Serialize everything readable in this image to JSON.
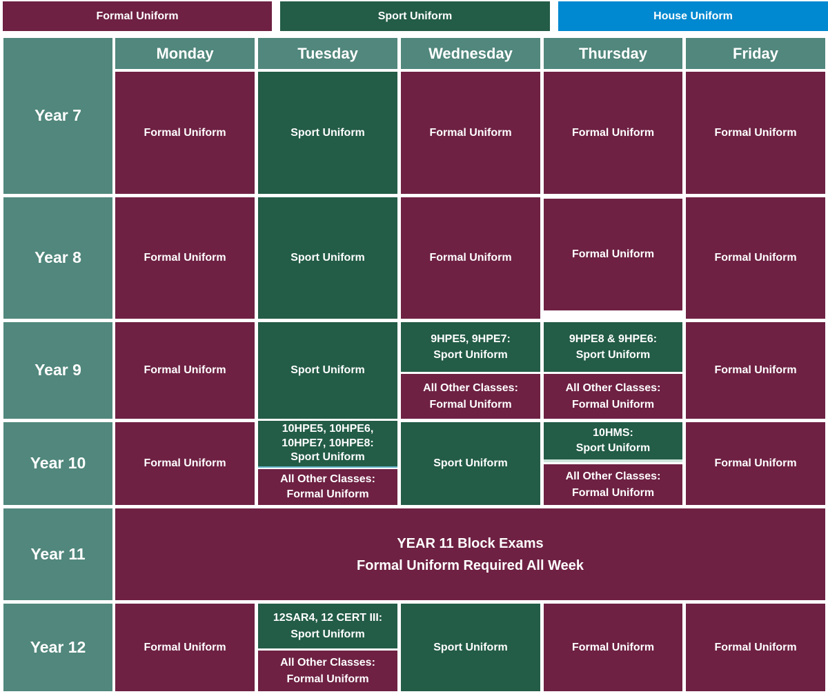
{
  "legend": {
    "formal": "Formal Uniform",
    "sport": "Sport Uniform",
    "house": "House Uniform"
  },
  "colors": {
    "formal": "#6e2143",
    "sport": "#235c47",
    "house": "#0088d0",
    "header": "#51877c"
  },
  "days": [
    "Monday",
    "Tuesday",
    "Wednesday",
    "Thursday",
    "Friday"
  ],
  "years": [
    "Year 7",
    "Year 8",
    "Year 9",
    "Year 10",
    "Year 11",
    "Year 12"
  ],
  "cells": {
    "y7": {
      "mon": "Formal Uniform",
      "tue": "Sport Uniform",
      "wed": "Formal Uniform",
      "thu": "Formal Uniform",
      "fri": "Formal Uniform"
    },
    "y8": {
      "mon": "Formal Uniform",
      "tue": "Sport Uniform",
      "wed": "Formal Uniform",
      "thu": "Formal Uniform",
      "fri": "Formal Uniform"
    },
    "y9": {
      "mon": "Formal Uniform",
      "tue": "Sport Uniform",
      "wed_top": [
        "9HPE5, 9HPE7:",
        "Sport Uniform"
      ],
      "wed_bottom": [
        "All Other Classes:",
        "Formal Uniform"
      ],
      "thu_top": [
        "9HPE8 & 9HPE6:",
        "Sport Uniform"
      ],
      "thu_bottom": [
        "All Other Classes:",
        "Formal  Uniform"
      ],
      "fri": "Formal Uniform"
    },
    "y10": {
      "mon": "Formal Uniform",
      "tue_top": [
        "10HPE5, 10HPE6,",
        "10HPE7, 10HPE8:",
        "Sport Uniform"
      ],
      "tue_bottom": [
        "All Other Classes:",
        "Formal Uniform"
      ],
      "wed": "Sport Uniform",
      "thu_top": [
        "10HMS:",
        "Sport Uniform"
      ],
      "thu_bottom": [
        "All Other Classes:",
        "Formal Uniform"
      ],
      "fri": "Formal Uniform"
    },
    "y11": [
      "YEAR 11 Block Exams",
      "Formal Uniform Required All Week"
    ],
    "y12": {
      "mon": "Formal Uniform",
      "tue_top": [
        "12SAR4, 12 CERT III:",
        "Sport Uniform"
      ],
      "tue_bottom": [
        "All Other Classes:",
        "Formal Uniform"
      ],
      "wed": "Sport Uniform",
      "thu": "Formal Uniform",
      "fri": "Formal Uniform"
    }
  }
}
